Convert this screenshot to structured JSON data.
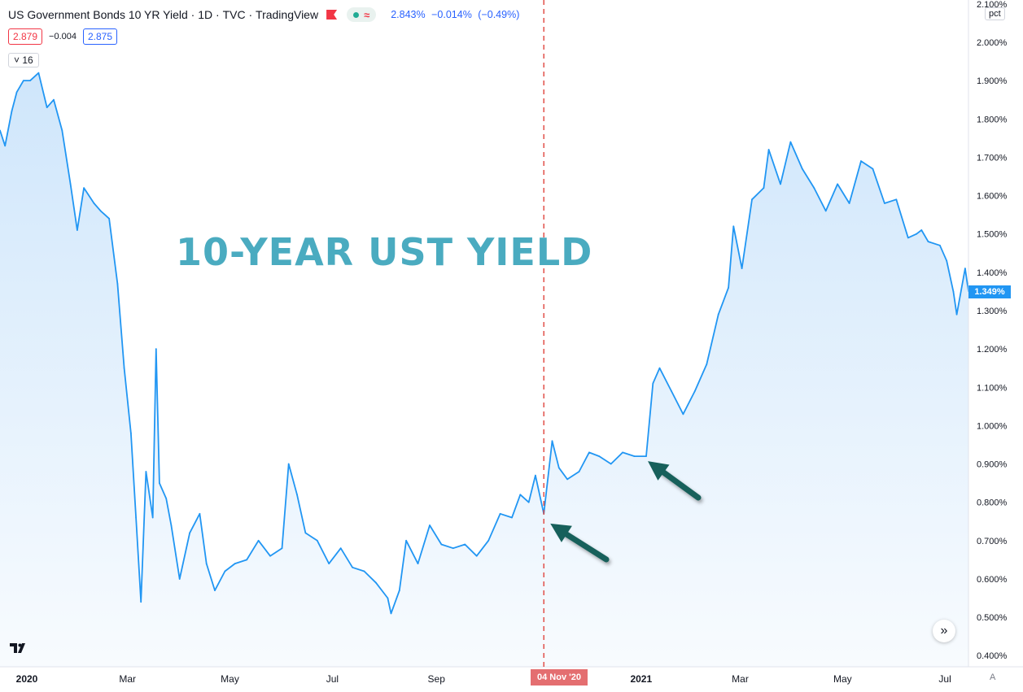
{
  "header": {
    "symbol": "US Government Bonds 10 YR Yield",
    "sep1": "·",
    "interval": "1D",
    "sep2": "·",
    "exchange": "TVC",
    "sep3": "·",
    "provider": "TradingView",
    "approx_symbol": "≈",
    "quote_last": "2.843%",
    "quote_change": "−0.014%",
    "quote_change_pct": "(−0.49%)",
    "bid": "2.879",
    "spread": "−0.004",
    "ask": "2.875",
    "indicator_count": "16",
    "indicator_chevron": "˅",
    "unit": "pct"
  },
  "overlay_title": "10-YEAR UST YIELD",
  "price_tag": "1.349%",
  "date_tag": "04 Nov '20",
  "logo_text": "𝟭𝟳",
  "nav_icon": "»",
  "auto_label": "A",
  "colors": {
    "line": "#2196f3",
    "fill": "#cfe6fb",
    "crosshair": "#e0443e",
    "arrow": "#17605b",
    "title": "#4aabc0"
  },
  "icons": [
    "flag-icon",
    "dot-icon",
    "chevron-down-icon",
    "arrow-icon",
    "scroll-right-icon",
    "tradingview-logo-icon"
  ],
  "chart_data": {
    "type": "area",
    "title": "",
    "xlabel": "",
    "ylabel": "",
    "ylim": [
      0.37,
      2.12
    ],
    "y_ticks": [
      "2.100%",
      "2.000%",
      "1.900%",
      "1.800%",
      "1.700%",
      "1.600%",
      "1.500%",
      "1.400%",
      "1.300%",
      "1.200%",
      "1.100%",
      "1.000%",
      "0.900%",
      "0.800%",
      "0.700%",
      "0.600%",
      "0.500%",
      "0.400%"
    ],
    "x_ticks": [
      "2020",
      "Mar",
      "May",
      "Jul",
      "Sep",
      "2021",
      "Mar",
      "May",
      "Jul"
    ],
    "grid": false,
    "series": [
      {
        "values_by_date": [
          [
            "2019-12-16",
            1.77
          ],
          [
            "2019-12-19",
            1.73
          ],
          [
            "2019-12-23",
            1.82
          ],
          [
            "2019-12-26",
            1.87
          ],
          [
            "2019-12-30",
            1.9
          ],
          [
            "2020-01-03",
            1.9
          ],
          [
            "2020-01-08",
            1.92
          ],
          [
            "2020-01-13",
            1.83
          ],
          [
            "2020-01-17",
            1.85
          ],
          [
            "2020-01-22",
            1.77
          ],
          [
            "2020-01-27",
            1.63
          ],
          [
            "2020-01-31",
            1.51
          ],
          [
            "2020-02-04",
            1.62
          ],
          [
            "2020-02-10",
            1.58
          ],
          [
            "2020-02-14",
            1.56
          ],
          [
            "2020-02-19",
            1.54
          ],
          [
            "2020-02-24",
            1.37
          ],
          [
            "2020-02-28",
            1.15
          ],
          [
            "2020-03-03",
            0.98
          ],
          [
            "2020-03-06",
            0.76
          ],
          [
            "2020-03-09",
            0.54
          ],
          [
            "2020-03-12",
            0.88
          ],
          [
            "2020-03-16",
            0.76
          ],
          [
            "2020-03-18",
            1.2
          ],
          [
            "2020-03-20",
            0.85
          ],
          [
            "2020-03-24",
            0.81
          ],
          [
            "2020-03-27",
            0.74
          ],
          [
            "2020-04-01",
            0.6
          ],
          [
            "2020-04-07",
            0.72
          ],
          [
            "2020-04-13",
            0.77
          ],
          [
            "2020-04-17",
            0.64
          ],
          [
            "2020-04-22",
            0.57
          ],
          [
            "2020-04-28",
            0.62
          ],
          [
            "2020-05-04",
            0.64
          ],
          [
            "2020-05-11",
            0.65
          ],
          [
            "2020-05-18",
            0.7
          ],
          [
            "2020-05-25",
            0.66
          ],
          [
            "2020-06-01",
            0.68
          ],
          [
            "2020-06-05",
            0.9
          ],
          [
            "2020-06-10",
            0.82
          ],
          [
            "2020-06-15",
            0.72
          ],
          [
            "2020-06-22",
            0.7
          ],
          [
            "2020-06-29",
            0.64
          ],
          [
            "2020-07-06",
            0.68
          ],
          [
            "2020-07-13",
            0.63
          ],
          [
            "2020-07-20",
            0.62
          ],
          [
            "2020-07-27",
            0.59
          ],
          [
            "2020-08-03",
            0.55
          ],
          [
            "2020-08-05",
            0.51
          ],
          [
            "2020-08-10",
            0.57
          ],
          [
            "2020-08-14",
            0.7
          ],
          [
            "2020-08-21",
            0.64
          ],
          [
            "2020-08-28",
            0.74
          ],
          [
            "2020-09-04",
            0.69
          ],
          [
            "2020-09-11",
            0.68
          ],
          [
            "2020-09-18",
            0.69
          ],
          [
            "2020-09-25",
            0.66
          ],
          [
            "2020-10-02",
            0.7
          ],
          [
            "2020-10-09",
            0.77
          ],
          [
            "2020-10-16",
            0.76
          ],
          [
            "2020-10-21",
            0.82
          ],
          [
            "2020-10-26",
            0.8
          ],
          [
            "2020-10-30",
            0.87
          ],
          [
            "2020-11-04",
            0.77
          ],
          [
            "2020-11-09",
            0.96
          ],
          [
            "2020-11-13",
            0.89
          ],
          [
            "2020-11-18",
            0.86
          ],
          [
            "2020-11-25",
            0.88
          ],
          [
            "2020-12-01",
            0.93
          ],
          [
            "2020-12-07",
            0.92
          ],
          [
            "2020-12-14",
            0.9
          ],
          [
            "2020-12-21",
            0.93
          ],
          [
            "2020-12-28",
            0.92
          ],
          [
            "2021-01-04",
            0.92
          ],
          [
            "2021-01-08",
            1.11
          ],
          [
            "2021-01-12",
            1.15
          ],
          [
            "2021-01-19",
            1.09
          ],
          [
            "2021-01-26",
            1.03
          ],
          [
            "2021-02-02",
            1.09
          ],
          [
            "2021-02-09",
            1.16
          ],
          [
            "2021-02-16",
            1.29
          ],
          [
            "2021-02-22",
            1.36
          ],
          [
            "2021-02-25",
            1.52
          ],
          [
            "2021-03-02",
            1.41
          ],
          [
            "2021-03-08",
            1.59
          ],
          [
            "2021-03-15",
            1.62
          ],
          [
            "2021-03-18",
            1.72
          ],
          [
            "2021-03-25",
            1.63
          ],
          [
            "2021-03-31",
            1.74
          ],
          [
            "2021-04-07",
            1.67
          ],
          [
            "2021-04-14",
            1.62
          ],
          [
            "2021-04-21",
            1.56
          ],
          [
            "2021-04-28",
            1.63
          ],
          [
            "2021-05-05",
            1.58
          ],
          [
            "2021-05-12",
            1.69
          ],
          [
            "2021-05-19",
            1.67
          ],
          [
            "2021-05-26",
            1.58
          ],
          [
            "2021-06-02",
            1.59
          ],
          [
            "2021-06-09",
            1.49
          ],
          [
            "2021-06-14",
            1.5
          ],
          [
            "2021-06-17",
            1.51
          ],
          [
            "2021-06-21",
            1.48
          ],
          [
            "2021-06-28",
            1.47
          ],
          [
            "2021-07-02",
            1.43
          ],
          [
            "2021-07-06",
            1.35
          ],
          [
            "2021-07-08",
            1.29
          ],
          [
            "2021-07-13",
            1.41
          ],
          [
            "2021-07-15",
            1.35
          ]
        ]
      }
    ],
    "annotations": [
      {
        "type": "vertical-line",
        "date": "2020-11-04",
        "label": "04 Nov '20"
      },
      {
        "type": "arrow",
        "points_to": "2020-11-04",
        "value": 0.77
      },
      {
        "type": "arrow",
        "points_to": "2021-01-04",
        "value": 0.92
      }
    ]
  }
}
